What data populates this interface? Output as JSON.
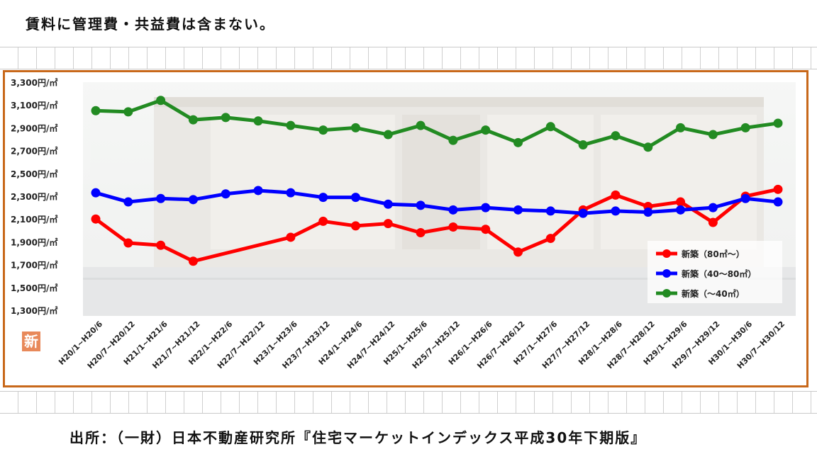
{
  "note": "賃料に管理費・共益費は含まない。",
  "source": "出所：（一財）日本不動産研究所『住宅マーケットインデックス平成30年下期版』",
  "logo_text": "新",
  "chart_data": {
    "type": "line",
    "title": "",
    "xlabel": "",
    "ylabel": "",
    "ylim": [
      1300,
      3300
    ],
    "yticks": [
      "3,300円/㎡",
      "3,100円/㎡",
      "2,900円/㎡",
      "2,700円/㎡",
      "2,500円/㎡",
      "2,300円/㎡",
      "2,100円/㎡",
      "1,900円/㎡",
      "1,700円/㎡",
      "1,500円/㎡",
      "1,300円/㎡"
    ],
    "ytick_values": [
      3300,
      3100,
      2900,
      2700,
      2500,
      2300,
      2100,
      1900,
      1700,
      1500,
      1300
    ],
    "categories": [
      "H20/1~H20/6",
      "H20/7~H20/12",
      "H21/1~H21/6",
      "H21/7~H21/12",
      "H22/1~H22/6",
      "H22/7~H22/12",
      "H23/1~H23/6",
      "H23/7~H23/12",
      "H24/1~H24/6",
      "H24/7~H24/12",
      "H25/1~H25/6",
      "H25/7~H25/12",
      "H26/1~H26/6",
      "H26/7~H26/12",
      "H27/1~H27/6",
      "H27/7~H27/12",
      "H28/1~H28/6",
      "H28/7~H28/12",
      "H29/1~H29/6",
      "H29/7~H29/12",
      "H30/1~H30/6",
      "H30/7~H30/12"
    ],
    "legend_position": "bottom-right",
    "series": [
      {
        "name": "新築（80㎡～）",
        "color": "#ff0000",
        "values": [
          2100,
          1890,
          1870,
          1730,
          null,
          null,
          1940,
          2080,
          2040,
          2060,
          1980,
          2030,
          2010,
          1810,
          1930,
          2180,
          2310,
          2210,
          2250,
          2070,
          2300,
          2360
        ]
      },
      {
        "name": "新築（40～80㎡）",
        "color": "#0000ff",
        "values": [
          2330,
          2250,
          2280,
          2270,
          2320,
          2350,
          2330,
          2290,
          2290,
          2230,
          2220,
          2180,
          2200,
          2180,
          2170,
          2150,
          2170,
          2160,
          2180,
          2200,
          2280,
          2250
        ]
      },
      {
        "name": "新築（～40㎡）",
        "color": "#228b22",
        "values": [
          3050,
          3040,
          3140,
          2970,
          2990,
          2960,
          2920,
          2880,
          2900,
          2840,
          2920,
          2790,
          2880,
          2770,
          2910,
          2750,
          2830,
          2730,
          2900,
          2840,
          2900,
          2940
        ]
      }
    ]
  }
}
